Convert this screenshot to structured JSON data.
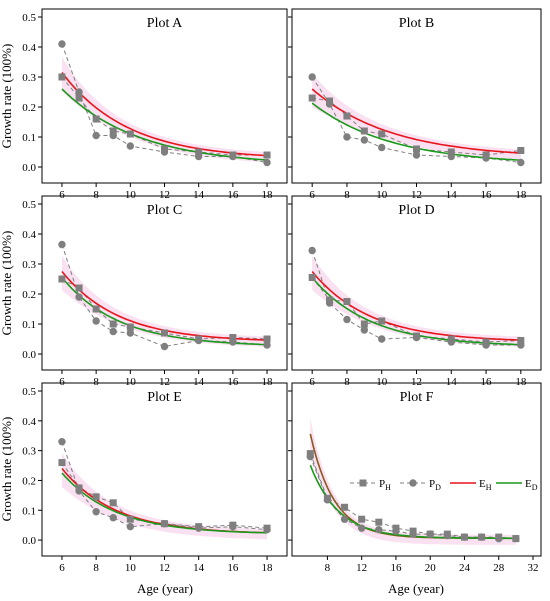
{
  "figure": {
    "ylabel": "Growth rate (100%)",
    "xlabel": "Age (year)"
  },
  "colors": {
    "P_H": "#7f7f7f",
    "P_D": "#7f7f7f",
    "E_H": "#e8141a",
    "E_D": "#1a9a1a",
    "E_H_F": "#8b5a1a",
    "band": "#f6d4ec"
  },
  "legend": [
    {
      "main": "P",
      "sub": "H",
      "kind": "PH"
    },
    {
      "main": "P",
      "sub": "D",
      "kind": "PD"
    },
    {
      "main": "E",
      "sub": "H",
      "kind": "EH"
    },
    {
      "main": "E",
      "sub": "D",
      "kind": "ED"
    }
  ],
  "chart_data": [
    {
      "type": "line",
      "title": "Plot A",
      "xlim": [
        5.3,
        18.7
      ],
      "xticks": [
        6,
        8,
        10,
        12,
        14,
        16,
        18
      ],
      "ylim": [
        -0.04,
        0.5
      ],
      "yticks": [
        0.0,
        0.1,
        0.2,
        0.3,
        0.4,
        0.5
      ],
      "series": [
        {
          "name": "P_H",
          "x": [
            6,
            7,
            8,
            9,
            10,
            12,
            14,
            16,
            18
          ],
          "values": [
            0.3,
            0.23,
            0.16,
            0.12,
            0.11,
            0.06,
            0.05,
            0.04,
            0.04
          ]
        },
        {
          "name": "P_D",
          "x": [
            6,
            7,
            8,
            9,
            10,
            12,
            14,
            16,
            18
          ],
          "values": [
            0.41,
            0.25,
            0.105,
            0.105,
            0.07,
            0.05,
            0.035,
            0.035,
            0.015
          ]
        },
        {
          "name": "E_H",
          "fit": {
            "a": 0.29,
            "b": 0.26,
            "c": 0.025
          }
        },
        {
          "name": "E_D",
          "fit": {
            "a": 0.255,
            "b": 0.22,
            "c": 0.005
          }
        }
      ]
    },
    {
      "type": "line",
      "title": "Plot B",
      "xlim": [
        5.3,
        18.7
      ],
      "xticks": [
        6,
        8,
        10,
        12,
        14,
        16,
        18
      ],
      "ylim": [
        -0.04,
        0.5
      ],
      "yticks": [
        0.0,
        0.1,
        0.2,
        0.3,
        0.4,
        0.5
      ],
      "series": [
        {
          "name": "P_H",
          "x": [
            6,
            7,
            8,
            9,
            10,
            12,
            14,
            16,
            18
          ],
          "values": [
            0.23,
            0.22,
            0.17,
            0.12,
            0.11,
            0.06,
            0.05,
            0.04,
            0.055
          ]
        },
        {
          "name": "P_D",
          "x": [
            6,
            7,
            8,
            9,
            10,
            12,
            14,
            16,
            18
          ],
          "values": [
            0.3,
            0.21,
            0.1,
            0.09,
            0.065,
            0.04,
            0.035,
            0.03,
            0.015
          ]
        },
        {
          "name": "E_H",
          "fit": {
            "a": 0.23,
            "b": 0.22,
            "c": 0.03
          }
        },
        {
          "name": "E_D",
          "fit": {
            "a": 0.205,
            "b": 0.22,
            "c": 0.008
          }
        }
      ]
    },
    {
      "type": "line",
      "title": "Plot C",
      "xlim": [
        5.3,
        18.7
      ],
      "xticks": [
        6,
        8,
        10,
        12,
        14,
        16,
        18
      ],
      "ylim": [
        -0.04,
        0.5
      ],
      "yticks": [
        0.0,
        0.1,
        0.2,
        0.3,
        0.4,
        0.5
      ],
      "series": [
        {
          "name": "P_H",
          "x": [
            6,
            7,
            8,
            9,
            10,
            12,
            14,
            16,
            18
          ],
          "values": [
            0.25,
            0.22,
            0.15,
            0.1,
            0.09,
            0.07,
            0.05,
            0.055,
            0.05
          ]
        },
        {
          "name": "P_D",
          "x": [
            6,
            7,
            8,
            9,
            10,
            12,
            14,
            16,
            18
          ],
          "values": [
            0.365,
            0.19,
            0.11,
            0.075,
            0.07,
            0.025,
            0.045,
            0.04,
            0.03
          ]
        },
        {
          "name": "E_H",
          "fit": {
            "a": 0.235,
            "b": 0.3,
            "c": 0.04
          }
        },
        {
          "name": "E_D",
          "fit": {
            "a": 0.23,
            "b": 0.3,
            "c": 0.025
          }
        }
      ]
    },
    {
      "type": "line",
      "title": "Plot D",
      "xlim": [
        5.3,
        18.7
      ],
      "xticks": [
        6,
        8,
        10,
        12,
        14,
        16,
        18
      ],
      "ylim": [
        -0.04,
        0.5
      ],
      "yticks": [
        0.0,
        0.1,
        0.2,
        0.3,
        0.4,
        0.5
      ],
      "series": [
        {
          "name": "P_H",
          "x": [
            6,
            7,
            8,
            9,
            10,
            12,
            14,
            16,
            18
          ],
          "values": [
            0.255,
            0.18,
            0.175,
            0.1,
            0.11,
            0.06,
            0.05,
            0.04,
            0.045
          ]
        },
        {
          "name": "P_D",
          "x": [
            6,
            7,
            8,
            9,
            10,
            12,
            14,
            16,
            18
          ],
          "values": [
            0.345,
            0.17,
            0.115,
            0.08,
            0.05,
            0.055,
            0.04,
            0.03,
            0.03
          ]
        },
        {
          "name": "E_H",
          "fit": {
            "a": 0.235,
            "b": 0.3,
            "c": 0.04
          }
        },
        {
          "name": "E_D",
          "fit": {
            "a": 0.23,
            "b": 0.3,
            "c": 0.025
          }
        }
      ]
    },
    {
      "type": "line",
      "title": "Plot E",
      "xlim": [
        5.3,
        18.7
      ],
      "xticks": [
        6,
        8,
        10,
        12,
        14,
        16,
        18
      ],
      "ylim": [
        -0.04,
        0.5
      ],
      "yticks": [
        0.0,
        0.1,
        0.2,
        0.3,
        0.4,
        0.5
      ],
      "series": [
        {
          "name": "P_H",
          "x": [
            6,
            7,
            8,
            9,
            10,
            12,
            14,
            16,
            18
          ],
          "values": [
            0.26,
            0.175,
            0.145,
            0.125,
            0.07,
            0.055,
            0.045,
            0.05,
            0.04
          ]
        },
        {
          "name": "P_D",
          "x": [
            6,
            7,
            8,
            9,
            10,
            12,
            14,
            16,
            18
          ],
          "values": [
            0.33,
            0.165,
            0.095,
            0.075,
            0.045,
            0.055,
            0.04,
            0.045,
            0.035
          ]
        },
        {
          "name": "E_H",
          "fit": {
            "a": 0.22,
            "b": 0.32,
            "c": 0.02
          }
        },
        {
          "name": "E_D",
          "fit": {
            "a": 0.205,
            "b": 0.32,
            "c": 0.02
          }
        }
      ]
    },
    {
      "type": "line",
      "title": "",
      "label": "Plot F",
      "xlim": [
        4.8,
        32
      ],
      "xticks": [
        8,
        12,
        16,
        20,
        24,
        28,
        32
      ],
      "ylim": [
        -0.04,
        0.5
      ],
      "yticks": [
        0.0,
        0.1,
        0.2,
        0.3,
        0.4,
        0.5
      ],
      "series": [
        {
          "name": "P_H",
          "x": [
            6,
            8,
            10,
            12,
            14,
            16,
            18,
            20,
            22,
            24,
            26,
            28,
            30
          ],
          "values": [
            0.29,
            0.14,
            0.11,
            0.07,
            0.06,
            0.04,
            0.03,
            0.02,
            0.02,
            0.01,
            0.01,
            0.01,
            0.005
          ]
        },
        {
          "name": "P_D",
          "x": [
            6,
            8,
            10,
            12,
            14,
            16,
            18,
            20,
            22,
            24,
            26,
            28,
            30
          ],
          "values": [
            0.28,
            0.135,
            0.07,
            0.04,
            0.035,
            0.03,
            0.02,
            0.02,
            0.015,
            0.01,
            0.01,
            0.005,
            0.005
          ]
        },
        {
          "name": "E_H",
          "fit": {
            "a": 0.35,
            "b": 0.36,
            "c": 0.006
          }
        },
        {
          "name": "E_D",
          "fit": {
            "a": 0.245,
            "b": 0.3,
            "c": 0.006
          }
        }
      ]
    }
  ]
}
